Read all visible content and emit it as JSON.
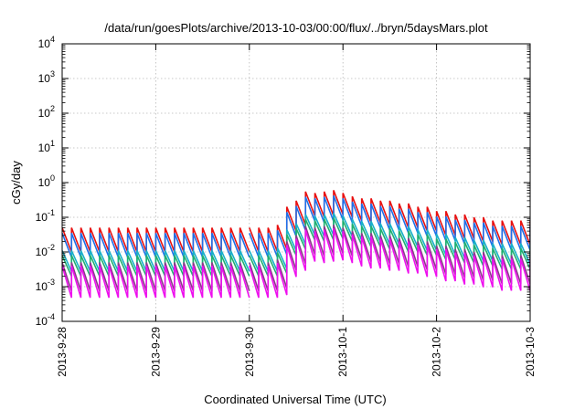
{
  "chart_data": {
    "type": "line",
    "title": "/data/run/goesPlots/archive/2013-10-03/00:00/flux/../bryn/5daysMars.plot",
    "xlabel": "Coordinated Universal Time (UTC)",
    "ylabel": "cGy/day",
    "yscale": "log",
    "ylim": [
      0.0001,
      10000
    ],
    "xlim": [
      "2013-09-28",
      "2013-10-03"
    ],
    "x_ticks": [
      "2013-9-28",
      "2013-9-29",
      "2013-9-30",
      "2013-10-1",
      "2013-10-2",
      "2013-10-3"
    ],
    "y_ticks": [
      {
        "base": "10",
        "exp": "4"
      },
      {
        "base": "10",
        "exp": "3"
      },
      {
        "base": "10",
        "exp": "2"
      },
      {
        "base": "10",
        "exp": "1"
      },
      {
        "base": "10",
        "exp": "0"
      },
      {
        "base": "10",
        "exp": "-1"
      },
      {
        "base": "10",
        "exp": "-2"
      },
      {
        "base": "10",
        "exp": "-3"
      },
      {
        "base": "10",
        "exp": "-4"
      }
    ],
    "grid": true,
    "pulse_period_days": 0.1,
    "gap_after_pulse": 20,
    "pulse_peaks": [
      0.05,
      0.05,
      0.05,
      0.05,
      0.05,
      0.05,
      0.05,
      0.05,
      0.05,
      0.05,
      0.05,
      0.05,
      0.05,
      0.05,
      0.05,
      0.05,
      0.05,
      0.05,
      0.05,
      0.05,
      0.05,
      0.05,
      0.05,
      0.06,
      0.2,
      0.3,
      0.55,
      0.5,
      0.55,
      0.6,
      0.5,
      0.4,
      0.35,
      0.35,
      0.3,
      0.3,
      0.25,
      0.25,
      0.2,
      0.2,
      0.15,
      0.15,
      0.12,
      0.12,
      0.1,
      0.1,
      0.08,
      0.08,
      0.08,
      0.08,
      0.08
    ],
    "series": [
      {
        "color": "#e81010",
        "peak_factor": 1.0,
        "end_factor": 0.2
      },
      {
        "color": "#1f6fe8",
        "peak_factor": 0.7,
        "end_factor": 0.2
      },
      {
        "color": "#18b0c8",
        "peak_factor": 0.22,
        "end_factor": 0.25
      },
      {
        "color": "#20b070",
        "peak_factor": 0.16,
        "end_factor": 0.25
      },
      {
        "color": "#8a3a8a",
        "peak_factor": 0.1,
        "end_factor": 0.15
      },
      {
        "color": "#ee10ee",
        "peak_factor": 0.08,
        "end_factor": 0.12
      }
    ]
  }
}
